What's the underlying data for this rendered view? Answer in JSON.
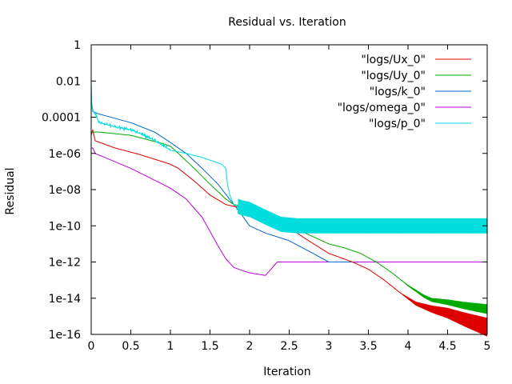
{
  "chart_data": {
    "type": "line",
    "title": "Residual vs. Iteration",
    "xlabel": "Iteration",
    "ylabel": "Residual",
    "xlim": [
      0,
      5
    ],
    "ylim": [
      1e-16,
      1
    ],
    "yscale": "log",
    "grid": false,
    "legend_position": "top-right",
    "xticks": [
      "0",
      "0.5",
      "1",
      "1.5",
      "2",
      "2.5",
      "3",
      "3.5",
      "4",
      "4.5",
      "5"
    ],
    "xtick_values": [
      0,
      0.5,
      1,
      1.5,
      2,
      2.5,
      3,
      3.5,
      4,
      4.5,
      5
    ],
    "yticks": [
      "1",
      "0.01",
      "0.0001",
      "1e-06",
      "1e-08",
      "1e-10",
      "1e-12",
      "1e-14",
      "1e-16"
    ],
    "ytick_values": [
      1,
      0.01,
      0.0001,
      1e-06,
      1e-08,
      1e-10,
      1e-12,
      1e-14,
      1e-16
    ],
    "series": [
      {
        "name": "\"logs/Ux_0\"",
        "color": "#dd0000",
        "x": [
          0,
          0.02,
          0.05,
          0.3,
          0.6,
          0.9,
          1.0,
          1.1,
          1.3,
          1.5,
          1.7,
          1.8,
          1.9,
          2.0,
          2.2,
          2.5,
          2.7,
          3.0,
          3.3,
          3.5,
          3.7,
          3.9,
          4.1,
          4.3,
          4.5,
          4.7,
          5.0
        ],
        "y": [
          1e-05,
          2e-05,
          5e-06,
          2e-06,
          9e-07,
          3.5e-07,
          2.5e-07,
          1.5e-07,
          3e-08,
          5e-09,
          1.5e-09,
          1.2e-09,
          1e-09,
          8e-10,
          4e-10,
          8e-11,
          2e-11,
          3e-12,
          1e-12,
          4e-13,
          1e-13,
          2e-14,
          5e-15,
          2.5e-15,
          1.5e-15,
          7e-16,
          2.5e-16
        ],
        "band": 0.5
      },
      {
        "name": "\"logs/Uy_0\"",
        "color": "#00aa00",
        "x": [
          0,
          0.1,
          0.5,
          0.9,
          1.0,
          1.1,
          1.3,
          1.5,
          1.7,
          1.8,
          2.0,
          2.2,
          2.5,
          2.7,
          3.0,
          3.2,
          3.4,
          3.6,
          3.8,
          4.0,
          4.2,
          4.3,
          4.5,
          4.7,
          5.0
        ],
        "y": [
          1.5e-05,
          1.5e-05,
          1e-05,
          3.5e-06,
          2.5e-06,
          1e-06,
          1.5e-07,
          2e-08,
          3e-09,
          1.5e-09,
          1e-09,
          4e-10,
          9e-11,
          4e-11,
          1e-11,
          6e-12,
          3e-12,
          1e-12,
          2.5e-13,
          5e-14,
          1.3e-14,
          8e-15,
          6e-15,
          4e-15,
          2.5e-15
        ],
        "band": 0.25
      },
      {
        "name": "\"logs/k_0\"",
        "color": "#0066cc",
        "x": [
          0,
          0.02,
          0.1,
          0.5,
          0.8,
          1.0,
          1.2,
          1.4,
          1.6,
          1.8,
          1.9,
          2.0,
          2.2,
          2.5,
          2.8,
          3.0,
          3.2,
          3.3
        ],
        "y": [
          0.001,
          0.0002,
          0.00015,
          5e-05,
          1.5e-05,
          4e-06,
          1e-06,
          1.5e-07,
          2e-08,
          1.5e-09,
          4e-10,
          1e-10,
          4e-11,
          1.5e-11,
          3e-12,
          1e-12,
          1e-12,
          1e-12
        ],
        "band": 0
      },
      {
        "name": "\"logs/omega_0\"",
        "color": "#bb00dd",
        "x": [
          0,
          0.02,
          0.05,
          0.5,
          1.0,
          1.2,
          1.4,
          1.5,
          1.6,
          1.7,
          1.8,
          1.9,
          2.0,
          2.2,
          2.35,
          2.4,
          3.0,
          4.0,
          5.0
        ],
        "y": [
          2e-06,
          2e-06,
          1e-06,
          1.5e-07,
          1.2e-08,
          3e-09,
          3e-10,
          5e-11,
          8e-12,
          1.5e-12,
          5e-13,
          3.5e-13,
          2.5e-13,
          1.8e-13,
          1e-12,
          1e-12,
          1e-12,
          1e-12,
          1e-12
        ],
        "band": 0
      },
      {
        "name": "\"logs/p_0\"",
        "color": "#00dddd",
        "x": [
          0,
          0.01,
          0.05,
          0.1,
          0.3,
          0.5,
          0.7,
          0.9,
          1.0,
          1.2,
          1.4,
          1.6,
          1.65,
          1.7,
          1.72,
          1.75,
          1.8,
          1.9,
          2.0,
          2.2,
          2.4,
          2.6,
          3.0,
          4.0,
          5.0
        ],
        "y": [
          0.01,
          0.0003,
          0.00015,
          5e-05,
          3e-05,
          2e-05,
          9e-06,
          3e-06,
          1.5e-06,
          1e-06,
          6e-07,
          3e-07,
          2.5e-07,
          1.5e-07,
          2e-08,
          5e-09,
          1.5e-09,
          1e-09,
          8e-10,
          3e-10,
          1.2e-10,
          1e-10,
          1e-10,
          1e-10,
          1e-10
        ],
        "band": 0.4,
        "noisy": true
      }
    ]
  }
}
